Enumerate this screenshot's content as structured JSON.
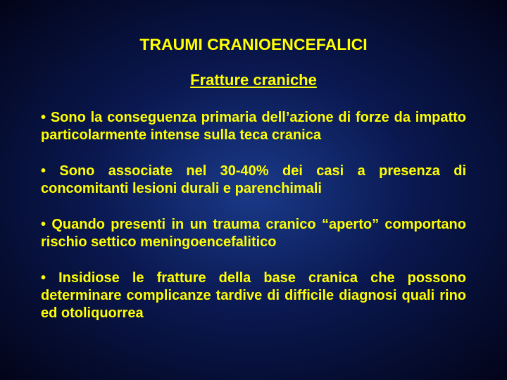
{
  "colors": {
    "background_center": "#1a3a8a",
    "background_mid": "#0a1850",
    "background_edge": "#020418",
    "text_color": "#ffff00"
  },
  "typography": {
    "family": "Arial",
    "title_size_pt": 23,
    "subtitle_size_pt": 22,
    "body_size_pt": 20,
    "weight": "bold",
    "body_align": "justify",
    "line_height": 1.25
  },
  "title": "TRAUMI CRANIOENCEFALICI",
  "subtitle": "Fratture craniche",
  "bullets": [
    "• Sono la conseguenza primaria dell’azione di forze da impatto particolarmente intense sulla teca cranica",
    "• Sono associate nel 30-40% dei casi a presenza di concomitanti lesioni durali e parenchimali",
    "• Quando presenti in un trauma cranico “aperto” comportano rischio settico meningoencefalitico",
    "• Insidiose le fratture della base cranica che possono determinare complicanze tardive di difficile diagnosi quali rino ed otoliquorrea"
  ]
}
